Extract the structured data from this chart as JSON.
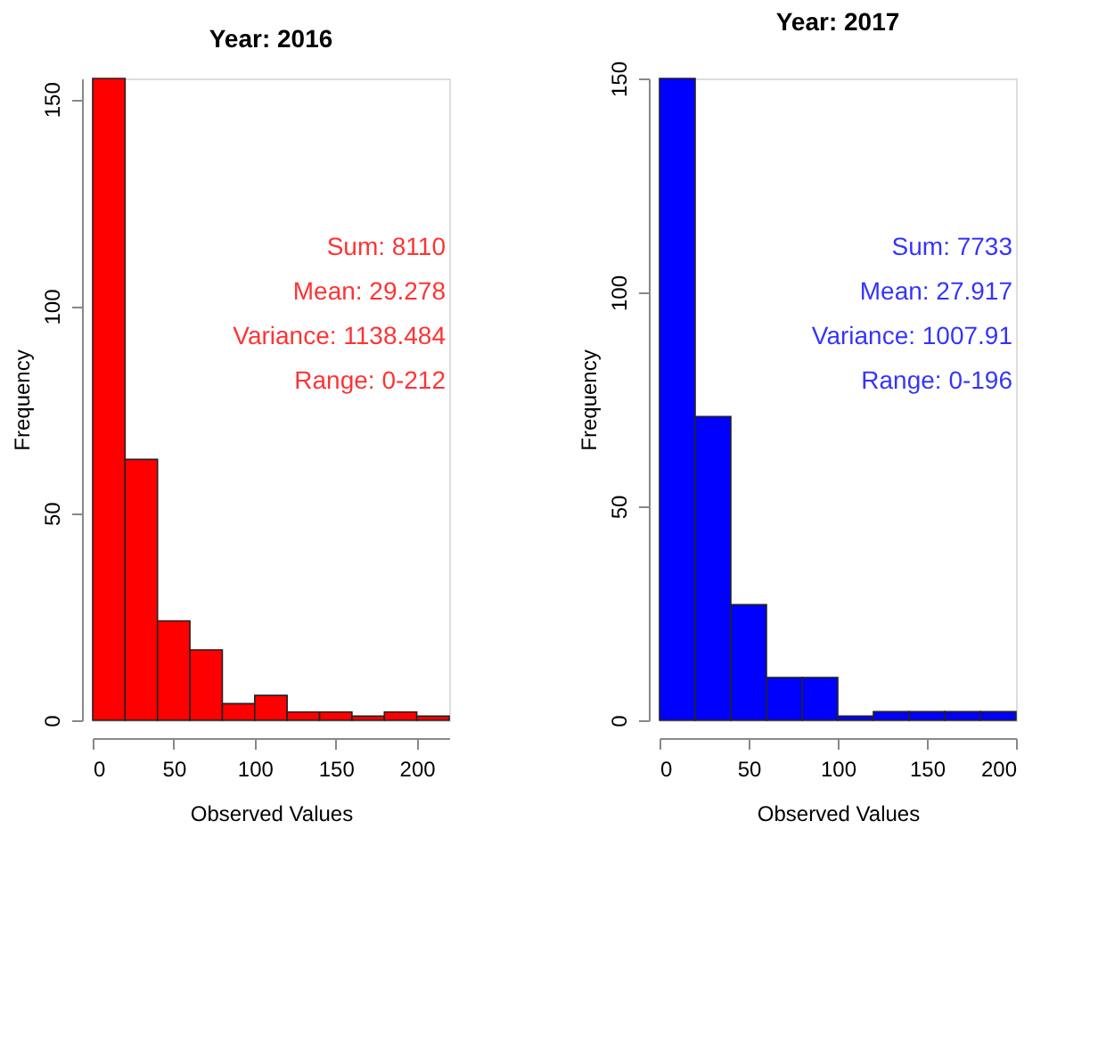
{
  "chart_data": [
    {
      "type": "histogram",
      "title": "Year: 2016",
      "xlabel": "Observed Values",
      "ylabel": "Frequency",
      "color": "#ff0000",
      "bins": [
        0,
        20,
        40,
        60,
        80,
        100,
        120,
        140,
        160,
        180,
        200,
        220
      ],
      "values": [
        155,
        63,
        24,
        17,
        4,
        6,
        2,
        2,
        1,
        2,
        1
      ],
      "xlim": [
        0,
        220
      ],
      "xticks": [
        0,
        50,
        100,
        150,
        200
      ],
      "ylim": [
        0,
        155
      ],
      "yticks": [
        0,
        50,
        100,
        150
      ],
      "grid": false,
      "annotations": [
        "Sum: 8110",
        "Mean: 29.278",
        "Variance: 1138.484",
        "Range: 0-212"
      ]
    },
    {
      "type": "histogram",
      "title": "Year: 2017",
      "xlabel": "Observed Values",
      "ylabel": "Frequency",
      "color": "#0000ff",
      "bins": [
        0,
        20,
        40,
        60,
        80,
        100,
        120,
        140,
        160,
        180,
        200
      ],
      "values": [
        150,
        71,
        27,
        10,
        10,
        1,
        2,
        2,
        2,
        2
      ],
      "xlim": [
        0,
        200
      ],
      "xticks": [
        0,
        50,
        100,
        150,
        200
      ],
      "ylim": [
        0,
        150
      ],
      "yticks": [
        0,
        50,
        100,
        150
      ],
      "grid": false,
      "annotations": [
        "Sum: 7733",
        "Mean: 27.917",
        "Variance: 1007.91",
        "Range: 0-196"
      ]
    }
  ]
}
